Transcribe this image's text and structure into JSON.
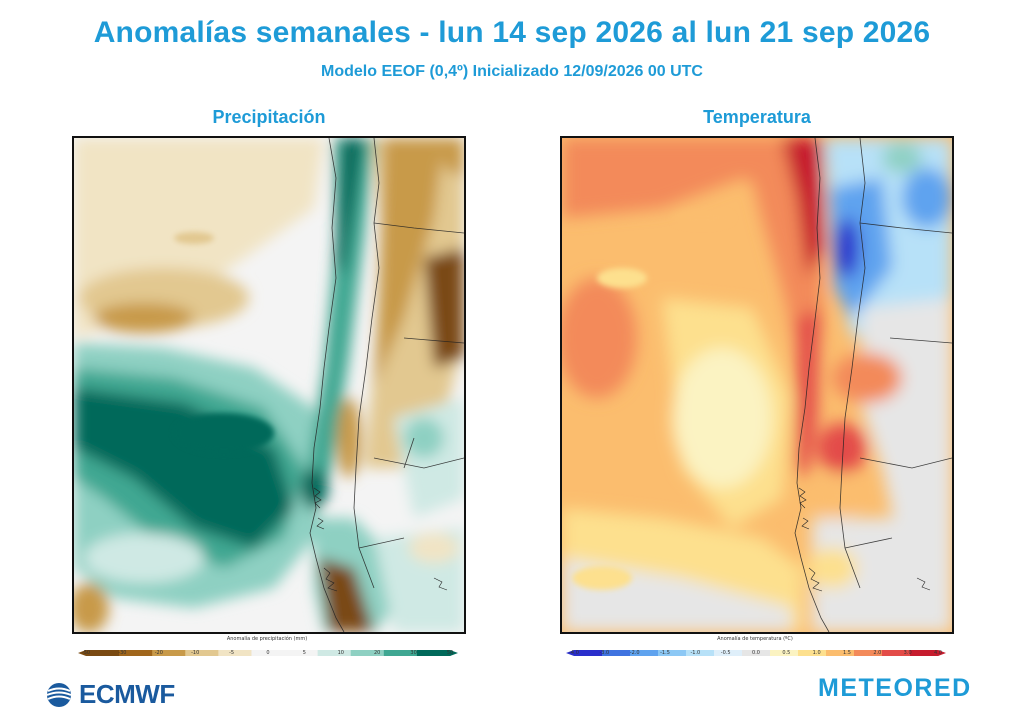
{
  "header": {
    "title": "Anomalías semanales - lun 14 sep 2026 al lun 21 sep 2026",
    "subtitle": "Modelo EEOF  (0,4º)  Inicializado 12/09/2026 00 UTC"
  },
  "panels": {
    "precipitation": {
      "title": "Precipitación",
      "colorbar_label": "Anomalía de precipitación (mm)",
      "ticks": [
        "-50",
        "-30",
        "-20",
        "-10",
        "-5",
        "0",
        "5",
        "10",
        "20",
        "30",
        "50"
      ],
      "colors": [
        "#7a4a12",
        "#a0661c",
        "#c89a4a",
        "#e2c890",
        "#f1e4c4",
        "#f4f4f4",
        "#f4f4f4",
        "#cfe9e4",
        "#8ed0c2",
        "#3fa792",
        "#00695a"
      ]
    },
    "temperature": {
      "title": "Temperatura",
      "colorbar_label": "Anomalía de temperatura (ºC)",
      "ticks": [
        "-4.0",
        "-3.0",
        "-2.0",
        "-1.5",
        "-1.0",
        "-0.5",
        "0.0",
        "0.5",
        "1.0",
        "1.5",
        "2.0",
        "3.0",
        "4.0"
      ],
      "colors": [
        "#2a2fcc",
        "#3f73e0",
        "#5fa3ef",
        "#8cc8f5",
        "#b7e1f8",
        "#dfeffa",
        "#e6e6e6",
        "#fbf3c2",
        "#fde08e",
        "#fbbd6e",
        "#f38a5a",
        "#e34c48",
        "#c61c2e"
      ]
    }
  },
  "logos": {
    "left": "ECMWF",
    "right": "METEORED"
  }
}
